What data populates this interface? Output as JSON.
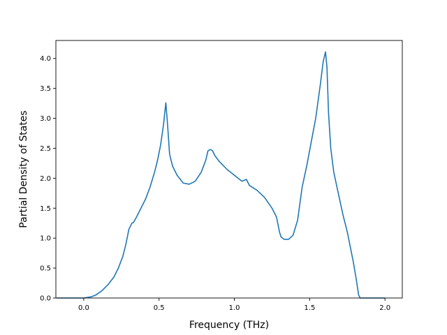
{
  "chart_data": {
    "type": "line",
    "title": "",
    "xlabel": "Frequency (THz)",
    "ylabel": "Partial Density of States",
    "xlim": [
      -0.185,
      2.115
    ],
    "ylim": [
      0.0,
      4.3
    ],
    "xticks": [
      0.0,
      0.5,
      1.0,
      1.5,
      2.0
    ],
    "xtick_labels": [
      "0.0",
      "0.5",
      "1.0",
      "1.5",
      "2.0"
    ],
    "yticks": [
      0.0,
      0.5,
      1.0,
      1.5,
      2.0,
      2.5,
      3.0,
      3.5,
      4.0
    ],
    "ytick_labels": [
      "0.0",
      "0.5",
      "1.0",
      "1.5",
      "2.0",
      "2.5",
      "3.0",
      "3.5",
      "4.0"
    ],
    "grid": false,
    "legend": "none",
    "line_color": "#1f77b4",
    "series": [
      {
        "x": [
          -0.18,
          -0.1,
          0.0,
          0.05,
          0.08,
          0.12,
          0.16,
          0.2,
          0.23,
          0.26,
          0.28,
          0.3,
          0.32,
          0.33,
          0.35,
          0.38,
          0.41,
          0.44,
          0.47,
          0.49,
          0.51,
          0.53,
          0.545,
          0.555,
          0.57,
          0.59,
          0.62,
          0.66,
          0.7,
          0.74,
          0.78,
          0.81,
          0.825,
          0.84,
          0.855,
          0.87,
          0.9,
          0.95,
          1.0,
          1.05,
          1.08,
          1.1,
          1.15,
          1.2,
          1.25,
          1.28,
          1.3,
          1.31,
          1.33,
          1.36,
          1.39,
          1.42,
          1.45,
          1.48,
          1.51,
          1.54,
          1.57,
          1.59,
          1.605,
          1.615,
          1.625,
          1.64,
          1.66,
          1.69,
          1.72,
          1.75,
          1.77,
          1.79,
          1.81,
          1.825,
          1.835,
          1.9,
          2.0
        ],
        "y": [
          0.0,
          0.0,
          0.0,
          0.02,
          0.05,
          0.12,
          0.22,
          0.35,
          0.5,
          0.7,
          0.9,
          1.15,
          1.25,
          1.26,
          1.35,
          1.5,
          1.65,
          1.85,
          2.1,
          2.3,
          2.55,
          2.9,
          3.26,
          2.95,
          2.4,
          2.2,
          2.05,
          1.92,
          1.9,
          1.95,
          2.1,
          2.3,
          2.46,
          2.48,
          2.46,
          2.38,
          2.28,
          2.15,
          2.05,
          1.95,
          1.98,
          1.88,
          1.8,
          1.68,
          1.5,
          1.35,
          1.1,
          1.02,
          0.98,
          0.98,
          1.05,
          1.3,
          1.85,
          2.2,
          2.6,
          3.0,
          3.55,
          3.95,
          4.11,
          3.85,
          3.1,
          2.5,
          2.1,
          1.75,
          1.4,
          1.1,
          0.85,
          0.6,
          0.3,
          0.05,
          0.0,
          0.0,
          0.0
        ]
      }
    ]
  }
}
